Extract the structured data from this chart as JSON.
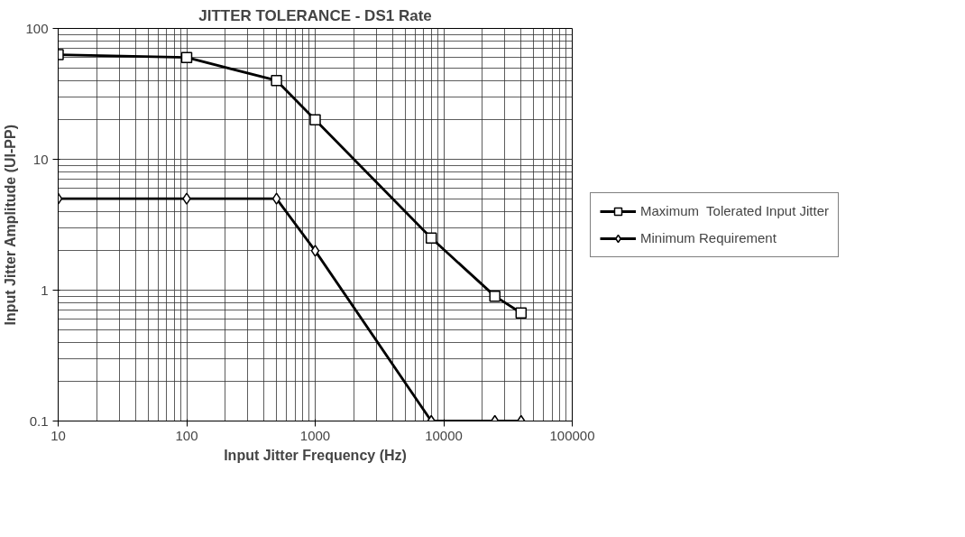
{
  "chart_data": {
    "type": "line",
    "title": "JITTER TOLERANCE - DS1 Rate",
    "xlabel": "Input Jitter Frequency (Hz)",
    "ylabel": "Input Jitter Amplitude (UI-PP)",
    "x": [
      10,
      100,
      500,
      1000,
      8000,
      25000,
      40000
    ],
    "series": [
      {
        "name": "Maximum  Tolerated Input Jitter",
        "color": "#000000",
        "marker": "square",
        "values": [
          63,
          60,
          40,
          20,
          2.5,
          0.9,
          0.67
        ]
      },
      {
        "name": "Minimum Requirement",
        "color": "#000000",
        "marker": "diamond",
        "values": [
          5,
          5,
          5,
          2,
          0.1,
          0.1,
          0.1
        ]
      }
    ],
    "log": "xy",
    "xlim": [
      10,
      100000
    ],
    "ylim": [
      0.1,
      100
    ],
    "xticks": [
      10,
      100,
      1000,
      10000,
      100000
    ],
    "yticks": [
      0.1,
      1,
      10,
      100
    ],
    "grid": true,
    "legend": "right",
    "line_style": "solid"
  }
}
